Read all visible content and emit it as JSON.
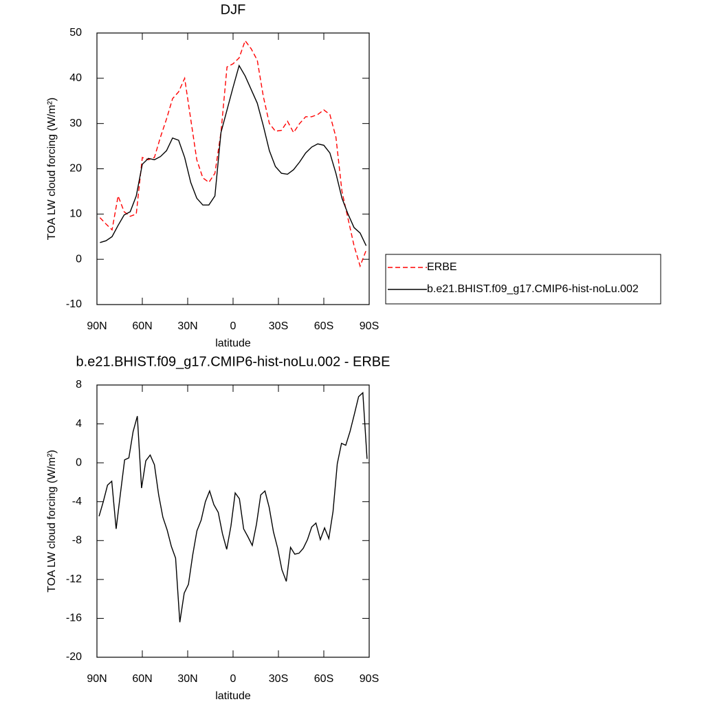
{
  "chart_data": [
    {
      "type": "line",
      "title": "DJF",
      "xlabel": "latitude",
      "ylabel": "TOA LW cloud forcing (W/m²)",
      "xlim": [
        90,
        -90
      ],
      "xticks": [
        {
          "value": 90,
          "label": "90N"
        },
        {
          "value": 60,
          "label": "60N"
        },
        {
          "value": 30,
          "label": "30N"
        },
        0,
        {
          "value": -30,
          "label": "30S"
        },
        {
          "value": -60,
          "label": "60S"
        },
        {
          "value": -90,
          "label": "90S"
        }
      ],
      "ylim": [
        -10,
        50
      ],
      "yticks": [
        -10,
        0,
        10,
        20,
        30,
        40,
        50
      ],
      "legend": "right",
      "x": [
        88,
        84,
        80,
        76,
        72,
        68,
        64,
        60,
        56,
        52,
        48,
        44,
        40,
        36,
        32,
        28,
        24,
        20,
        16,
        12,
        8,
        4,
        0,
        -4,
        -8,
        -12,
        -16,
        -20,
        -24,
        -28,
        -32,
        -36,
        -40,
        -44,
        -48,
        -52,
        -56,
        -60,
        -64,
        -68,
        -72,
        -76,
        -80,
        -84,
        -88
      ],
      "series": [
        {
          "name": "ERBE",
          "color": "#ff0000",
          "style": "dashed",
          "values": [
            9.2,
            7.8,
            6.5,
            14,
            10.5,
            9.5,
            10,
            22.5,
            22,
            22.5,
            27,
            31,
            35.5,
            37,
            40,
            31,
            22,
            18,
            17,
            19,
            28,
            42.5,
            43.2,
            44.5,
            48.3,
            46.5,
            44,
            36,
            30,
            28.3,
            28.5,
            30.5,
            28,
            30,
            31.5,
            31.5,
            32,
            33,
            32,
            27,
            15,
            9,
            3,
            -1.5,
            2
          ]
        },
        {
          "name": "b.e21.BHIST.f09_g17.CMIP6-hist-noLu.002",
          "color": "#000000",
          "style": "solid",
          "values": [
            3.7,
            4.1,
            5,
            7.5,
            9.8,
            10.5,
            14,
            21,
            22.3,
            22,
            22.7,
            24,
            26.8,
            26.3,
            22.5,
            17,
            13.5,
            12,
            12,
            14,
            28,
            33,
            38,
            42.8,
            40.5,
            37.5,
            34.5,
            29.5,
            24,
            20.5,
            19,
            18.8,
            19.8,
            21.5,
            23.5,
            24.8,
            25.5,
            25.2,
            23.5,
            19,
            13.5,
            10,
            7,
            5.8,
            3
          ]
        }
      ]
    },
    {
      "type": "line",
      "title": "b.e21.BHIST.f09_g17.CMIP6-hist-noLu.002 - ERBE",
      "xlabel": "latitude",
      "ylabel": "TOA LW cloud forcing (W/m²)",
      "xlim": [
        90,
        -90
      ],
      "xticks": [
        {
          "value": 90,
          "label": "90N"
        },
        {
          "value": 60,
          "label": "60N"
        },
        {
          "value": 30,
          "label": "30N"
        },
        0,
        {
          "value": -30,
          "label": "30S"
        },
        {
          "value": -60,
          "label": "60S"
        },
        {
          "value": -90,
          "label": "90S"
        }
      ],
      "ylim": [
        -20,
        8
      ],
      "yticks": [
        -20,
        -16,
        -12,
        -8,
        -4,
        0,
        4,
        8
      ],
      "color": "#000000",
      "x": [
        88.6,
        85.8,
        83.0,
        80.2,
        77.3,
        74.5,
        71.7,
        68.9,
        66.1,
        63.3,
        60.5,
        57.7,
        54.8,
        52.0,
        49.2,
        46.4,
        43.6,
        40.8,
        38.0,
        35.2,
        32.3,
        29.5,
        26.7,
        23.9,
        21.1,
        18.3,
        15.5,
        12.7,
        9.8,
        7.0,
        4.2,
        1.4,
        -1.4,
        -4.2,
        -7.0,
        -9.8,
        -12.7,
        -15.5,
        -18.3,
        -21.1,
        -23.9,
        -26.7,
        -29.5,
        -32.3,
        -35.2,
        -38.0,
        -40.8,
        -43.6,
        -46.4,
        -49.2,
        -52.0,
        -54.8,
        -57.7,
        -60.5,
        -63.3,
        -66.1,
        -68.9,
        -71.7,
        -74.5,
        -77.3,
        -80.2,
        -83.0,
        -85.8,
        -88.6
      ],
      "values": [
        -5.5,
        -4,
        -2.3,
        -1.9,
        -6.8,
        -3.2,
        0.3,
        0.5,
        3.2,
        4.8,
        -2.6,
        0.2,
        0.8,
        -0.2,
        -3.3,
        -5.6,
        -6.9,
        -8.6,
        -9.8,
        -16.4,
        -13.4,
        -12.5,
        -9.5,
        -7,
        -5.9,
        -4,
        -2.9,
        -4.3,
        -5.1,
        -7.3,
        -8.9,
        -6.5,
        -3.1,
        -3.7,
        -6.8,
        -7.6,
        -8.5,
        -6.3,
        -3.3,
        -2.9,
        -4.6,
        -7.1,
        -8.8,
        -11,
        -12.2,
        -8.7,
        -9.4,
        -9.3,
        -8.8,
        -7.9,
        -6.6,
        -6.2,
        -7.9,
        -6.7,
        -7.8,
        -5,
        -0.1,
        2,
        1.8,
        3.2,
        5,
        6.8,
        7.2,
        0.4
      ]
    }
  ]
}
